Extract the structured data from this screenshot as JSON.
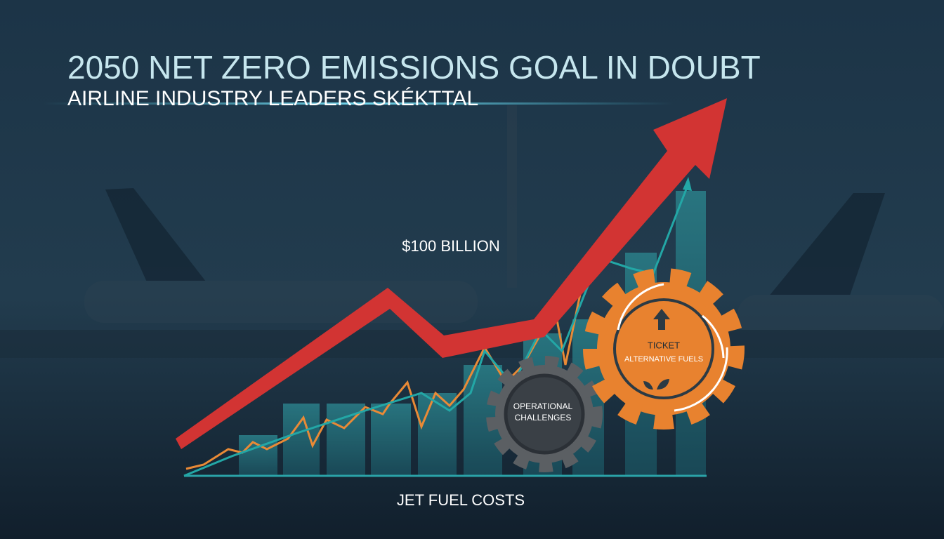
{
  "header": {
    "title": "2050 NET ZERO EMISSIONS GOAL IN DOUBT",
    "subtitle": "AIRLINE INDUSTRY LEADERS SKÉKTTAL"
  },
  "labels": {
    "amount": "$100 BILLION",
    "axis": "JET FUEL COSTS"
  },
  "gears": [
    {
      "lines": [
        "OPERATIONAL",
        "CHALLENGES"
      ]
    },
    {
      "lines": [
        "TICKET",
        "ALTERNATIVE FUELS"
      ]
    }
  ]
}
